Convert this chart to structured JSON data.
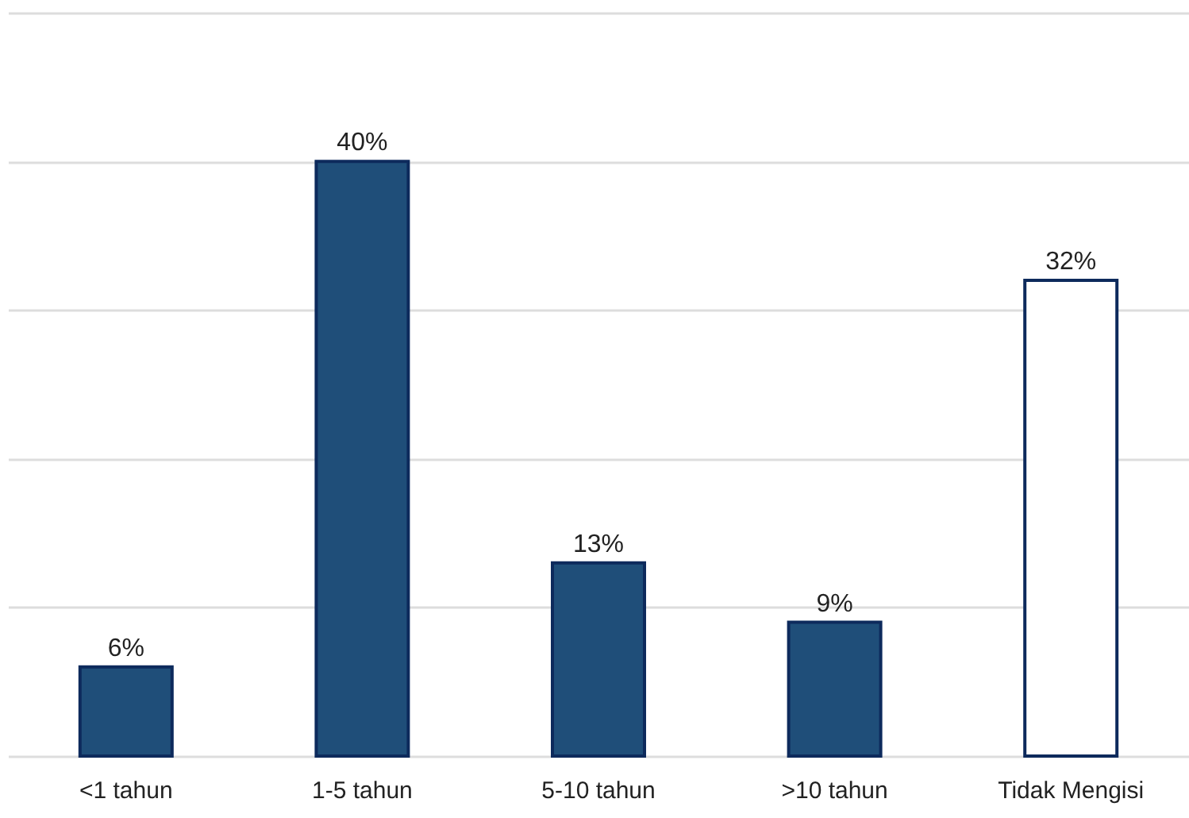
{
  "chart_data": {
    "type": "bar",
    "categories": [
      "<1 tahun",
      "1-5 tahun",
      "5-10 tahun",
      ">10 tahun",
      "Tidak Mengisi"
    ],
    "values": [
      6,
      40,
      13,
      9,
      32
    ],
    "colors": [
      "#1f4e79",
      "#1f4e79",
      "#1f4e79",
      "#1f4e79",
      "#ffffff"
    ],
    "value_labels": [
      "6%",
      "40%",
      "13%",
      "9%",
      "32%"
    ],
    "ylim": [
      0,
      50
    ],
    "yticks": [
      {
        "value": 0,
        "label": null
      },
      {
        "value": 10,
        "label": null
      },
      {
        "value": 20,
        "label": null
      },
      {
        "value": 30,
        "label": null
      },
      {
        "value": 40,
        "label": null
      },
      {
        "value": 50,
        "label": null
      }
    ],
    "grid": "y",
    "tick_labels": "x"
  }
}
